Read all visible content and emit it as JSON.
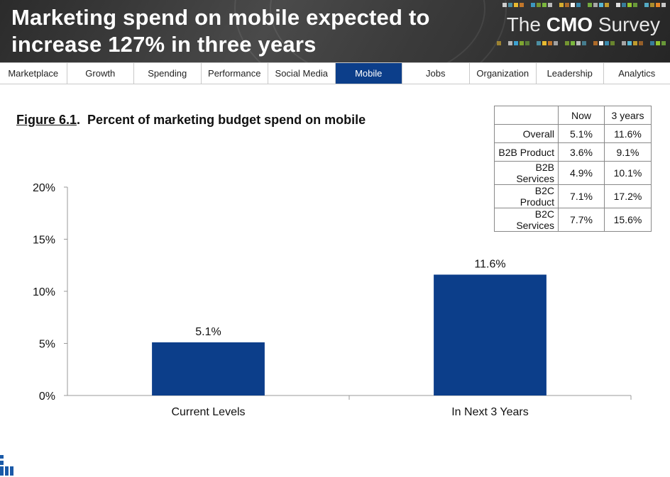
{
  "header": {
    "headline_line1": "Marketing spend on mobile expected to",
    "headline_line2": "increase 127% in three years",
    "brand_prefix": "The ",
    "brand_bold": "CMO",
    "brand_suffix": " Survey"
  },
  "nav": {
    "tabs": [
      {
        "label": "Marketplace",
        "active": false
      },
      {
        "label": "Growth",
        "active": false
      },
      {
        "label": "Spending",
        "active": false
      },
      {
        "label": "Performance",
        "active": false
      },
      {
        "label": "Social Media",
        "active": false
      },
      {
        "label": "Mobile",
        "active": true
      },
      {
        "label": "Jobs",
        "active": false
      },
      {
        "label": "Organization",
        "active": false
      },
      {
        "label": "Leadership",
        "active": false
      },
      {
        "label": "Analytics",
        "active": false
      }
    ]
  },
  "figure": {
    "number": "Figure 6.1",
    "title": "Percent of marketing budget spend on mobile"
  },
  "table": {
    "headers": [
      "",
      "Now",
      "3 years"
    ],
    "rows": [
      {
        "label": "Overall",
        "now": "5.1%",
        "three_years": "11.6%"
      },
      {
        "label": "B2B Product",
        "now": "3.6%",
        "three_years": "9.1%"
      },
      {
        "label": "B2B Services",
        "now": "4.9%",
        "three_years": "10.1%"
      },
      {
        "label": "B2C Product",
        "now": "7.1%",
        "three_years": "17.2%"
      },
      {
        "label": "B2C Services",
        "now": "7.7%",
        "three_years": "15.6%"
      }
    ]
  },
  "chart_data": {
    "type": "bar",
    "title": "Percent of marketing budget spend on mobile",
    "categories": [
      "Current Levels",
      "In Next 3 Years"
    ],
    "values": [
      5.1,
      11.6
    ],
    "data_labels": [
      "5.1%",
      "11.6%"
    ],
    "ylim": [
      0,
      20
    ],
    "yticks": [
      0,
      5,
      10,
      15,
      20
    ],
    "ytick_labels": [
      "0%",
      "5%",
      "10%",
      "15%",
      "20%"
    ],
    "xlabel": "",
    "ylabel": "",
    "grid": false,
    "bar_color": "#0c3e8a"
  },
  "colors": {
    "accent": "#0c3e8a",
    "header_bg": "#3a3a3a"
  }
}
